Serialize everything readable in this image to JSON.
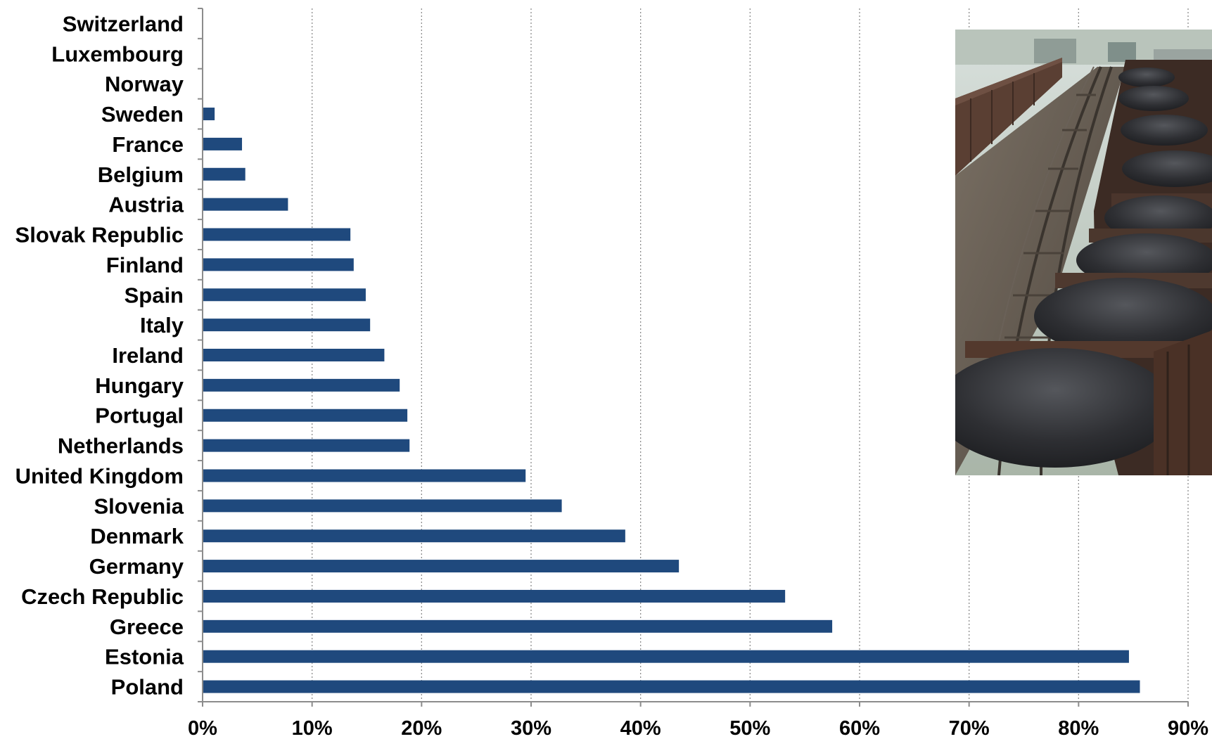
{
  "chart_data": {
    "type": "bar",
    "orientation": "horizontal",
    "categories": [
      "Switzerland",
      "Luxembourg",
      "Norway",
      "Sweden",
      "France",
      "Belgium",
      "Austria",
      "Slovak Republic",
      "Finland",
      "Spain",
      "Italy",
      "Ireland",
      "Hungary",
      "Portugal",
      "Netherlands",
      "United Kingdom",
      "Slovenia",
      "Denmark",
      "Germany",
      "Czech Republic",
      "Greece",
      "Estonia",
      "Poland"
    ],
    "values": [
      0,
      0,
      0,
      1.1,
      3.6,
      3.9,
      7.8,
      13.5,
      13.8,
      14.9,
      15.3,
      16.6,
      18.0,
      18.7,
      18.9,
      29.5,
      32.8,
      38.6,
      43.5,
      53.2,
      57.5,
      84.6,
      85.6
    ],
    "xlim": [
      0,
      90
    ],
    "xticks": [
      "0%",
      "10%",
      "20%",
      "30%",
      "40%",
      "50%",
      "60%",
      "70%",
      "80%",
      "90%"
    ],
    "grid": true,
    "bar_color": "#1f497d",
    "title": "",
    "xlabel": "",
    "ylabel": ""
  },
  "inset_photo": {
    "icon": "coal-train-photo",
    "colors": {
      "sky": "#c9d3cf",
      "coal": "#2b2c30",
      "wagon": "#5b4236",
      "rail": "#5c5248"
    }
  }
}
